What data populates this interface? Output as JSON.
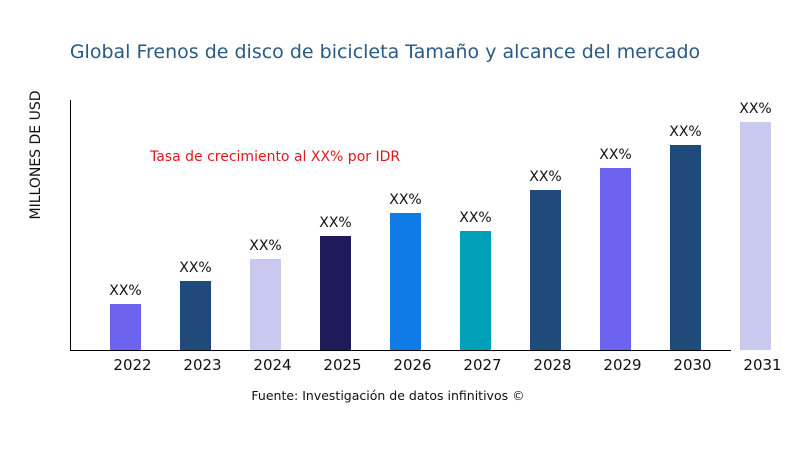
{
  "chart_data": {
    "type": "bar",
    "title": "Global Frenos de disco de bicicleta Tamaño y alcance del mercado",
    "ylabel": "MILLONES DE USD",
    "xlabel": "",
    "annotation": "Tasa de crecimiento al XX% por IDR",
    "source": "Fuente: Investigación de datos infinitivos ©",
    "categories": [
      "2022",
      "2023",
      "2024",
      "2025",
      "2026",
      "2027",
      "2028",
      "2029",
      "2030",
      "2031"
    ],
    "values": [
      46,
      69,
      91,
      114,
      137,
      119,
      160,
      182,
      205,
      228
    ],
    "data_labels": [
      "XX%",
      "XX%",
      "XX%",
      "XX%",
      "XX%",
      "XX%",
      "XX%",
      "XX%",
      "XX%",
      "XX%"
    ],
    "colors": [
      "#6C63EE",
      "#1F4A7A",
      "#C9C9F0",
      "#1F1A5A",
      "#0E7BE6",
      "#00A0B8",
      "#1F4A7A",
      "#6C63EE",
      "#1F4A7A",
      "#C9C9F0"
    ],
    "ylim": [
      0,
      250
    ],
    "grid": false,
    "title_color": "#2A5A84",
    "annotation_color": "#E0191E"
  }
}
